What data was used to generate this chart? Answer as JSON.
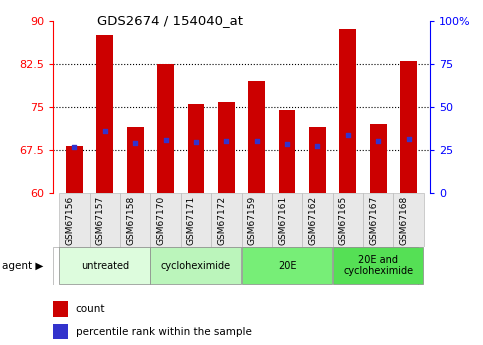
{
  "title": "GDS2674 / 154040_at",
  "samples": [
    "GSM67156",
    "GSM67157",
    "GSM67158",
    "GSM67170",
    "GSM67171",
    "GSM67172",
    "GSM67159",
    "GSM67161",
    "GSM67162",
    "GSM67165",
    "GSM67167",
    "GSM67168"
  ],
  "count_values": [
    68.2,
    87.5,
    71.5,
    82.5,
    75.5,
    75.8,
    79.5,
    74.5,
    71.5,
    88.5,
    72.0,
    83.0
  ],
  "percentile_values": [
    27.0,
    36.0,
    29.0,
    31.0,
    29.5,
    30.0,
    30.5,
    28.5,
    27.5,
    34.0,
    30.5,
    31.5
  ],
  "ylim_left": [
    60,
    90
  ],
  "ylim_right": [
    0,
    100
  ],
  "yticks_left": [
    60,
    67.5,
    75,
    82.5,
    90
  ],
  "yticks_right": [
    0,
    25,
    50,
    75,
    100
  ],
  "ytick_labels_left": [
    "60",
    "67.5",
    "75",
    "82.5",
    "90"
  ],
  "ytick_labels_right": [
    "0",
    "25",
    "50",
    "75",
    "100%"
  ],
  "bar_color": "#cc0000",
  "percentile_color": "#3333cc",
  "background_color": "#ffffff",
  "bar_width": 0.55,
  "base_value": 60,
  "agent_groups": [
    {
      "label": "untreated",
      "start": 0,
      "end": 3,
      "color": "#ddfcdd"
    },
    {
      "label": "cycloheximide",
      "start": 3,
      "end": 6,
      "color": "#bbf5bb"
    },
    {
      "label": "20E",
      "start": 6,
      "end": 9,
      "color": "#77ee77"
    },
    {
      "label": "20E and\ncycloheximide",
      "start": 9,
      "end": 12,
      "color": "#55e055"
    }
  ]
}
